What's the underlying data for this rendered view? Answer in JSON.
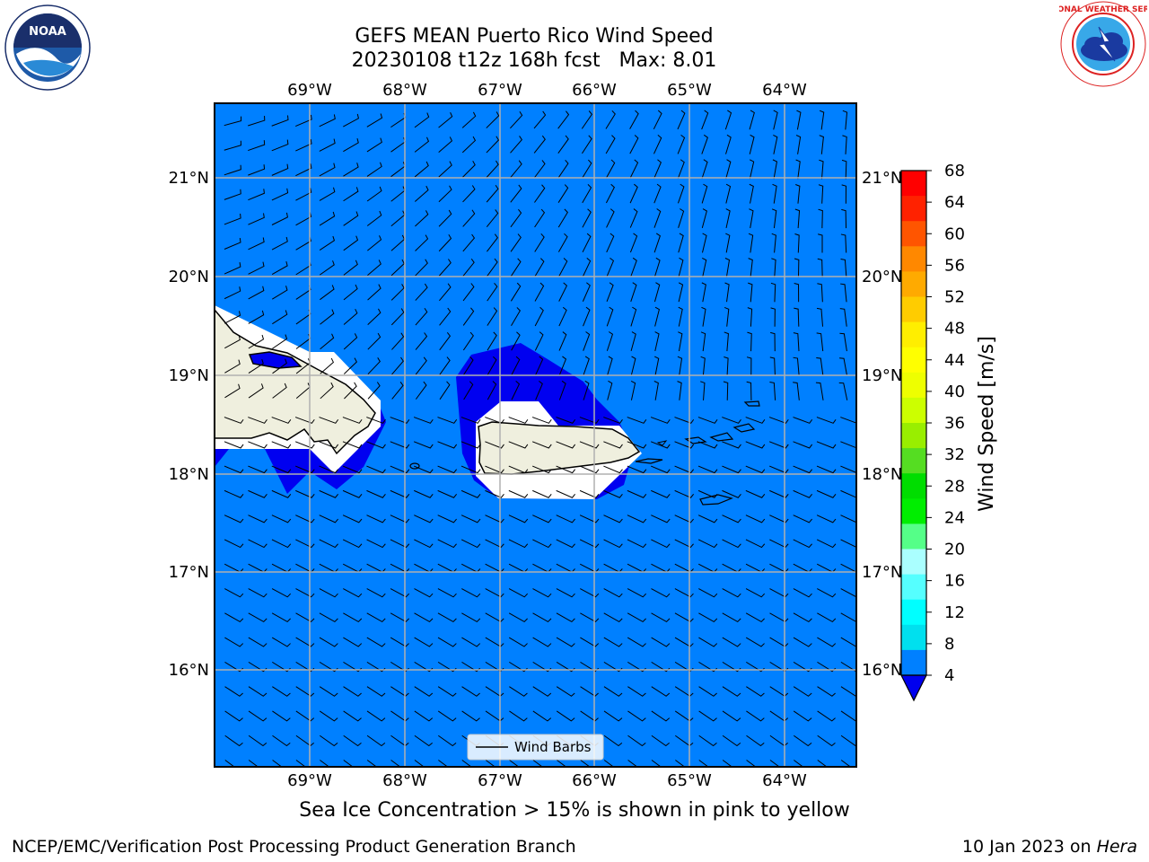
{
  "header": {
    "title_line1": "GEFS MEAN Puerto Rico Wind Speed",
    "title_line2": "20230108 t12z 168h fcst   Max: 8.01"
  },
  "logos": {
    "left": "noaa-logo",
    "left_text": "NOAA",
    "right": "nws-logo",
    "right_text": "NATIONAL WEATHER SERVICE"
  },
  "map": {
    "lon_labels": [
      "69°W",
      "68°W",
      "67°W",
      "66°W",
      "65°W",
      "64°W"
    ],
    "lat_labels": [
      "21°N",
      "20°N",
      "19°N",
      "18°N",
      "17°N",
      "16°N"
    ],
    "ocean_color": "#0080ff",
    "calm_color": "#0000f0",
    "land_color": "#efefde",
    "legend_label": "Wind Barbs"
  },
  "colorbar": {
    "label": "Wind Speed [m/s]",
    "ticks": [
      "68",
      "64",
      "60",
      "56",
      "52",
      "48",
      "44",
      "40",
      "36",
      "32",
      "28",
      "24",
      "20",
      "16",
      "12",
      "8",
      "4"
    ],
    "colors": [
      "#ff0000",
      "#ff2200",
      "#ff5500",
      "#ff8800",
      "#ffaa00",
      "#ffcc00",
      "#ffee00",
      "#ffff00",
      "#eeff00",
      "#ccff00",
      "#99ee00",
      "#55dd22",
      "#00dd00",
      "#00ee00",
      "#55ff88",
      "#aaffff",
      "#55ffff",
      "#00ffff",
      "#00e0ee",
      "#0080ff"
    ],
    "extend_color": "#0000ee"
  },
  "caption": "Sea Ice Concentration > 15% is shown in pink to yellow",
  "footer": {
    "left": "NCEP/EMC/Verification Post Processing Product Generation Branch",
    "right_date": "10 Jan 2023 on",
    "right_host": "Hera"
  }
}
